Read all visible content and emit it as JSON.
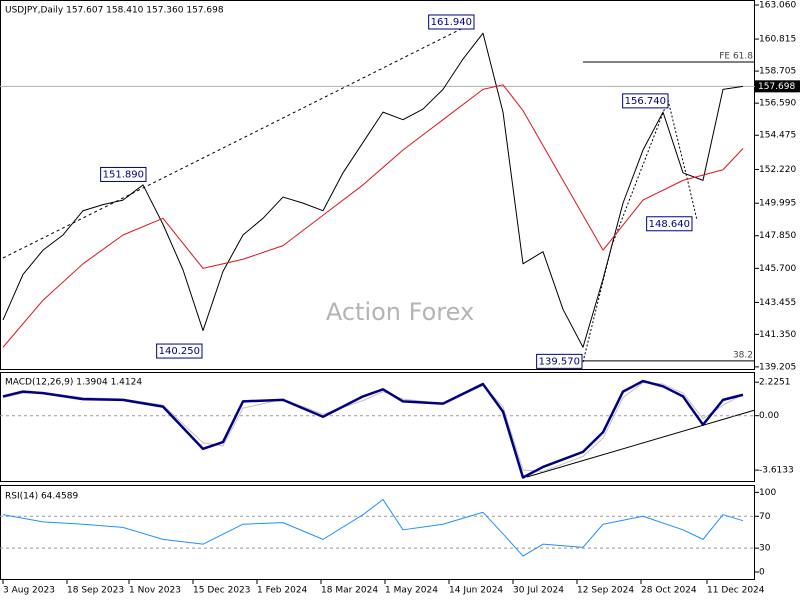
{
  "chart_data": [
    {
      "type": "line",
      "title": "USDJPY,Daily 157.607 158.410 157.360 157.698",
      "watermark": "Action Forex",
      "ylim": [
        139.0,
        163.39
      ],
      "yticks": [
        {
          "value": 163.06,
          "label": "163.060"
        },
        {
          "value": 160.815,
          "label": "160.815"
        },
        {
          "value": 158.705,
          "label": "158.705"
        },
        {
          "value": 156.59,
          "label": "156.590"
        },
        {
          "value": 154.475,
          "label": "154.475"
        },
        {
          "value": 152.22,
          "label": "152.220"
        },
        {
          "value": 149.995,
          "label": "149.995"
        },
        {
          "value": 147.85,
          "label": "147.850"
        },
        {
          "value": 145.7,
          "label": "145.700"
        },
        {
          "value": 143.455,
          "label": "143.455"
        },
        {
          "value": 141.35,
          "label": "141.350"
        },
        {
          "value": 139.205,
          "label": "139.205"
        }
      ],
      "current": {
        "value": 157.698,
        "label": "157.698"
      },
      "series": [
        {
          "color": "#000000",
          "linewidth": 1,
          "x": [
            0,
            10,
            20,
            30,
            40,
            50,
            60,
            70,
            80,
            90,
            100,
            110,
            120,
            130,
            140,
            150,
            160,
            170,
            180,
            190,
            200,
            210,
            220,
            230,
            240,
            250,
            260,
            270,
            280,
            290,
            300,
            310,
            320,
            330,
            340,
            350,
            360,
            370
          ],
          "values": [
            142.3,
            145.3,
            146.9,
            147.9,
            149.5,
            149.9,
            150.2,
            151.2,
            148.6,
            145.6,
            141.6,
            145.5,
            147.9,
            149.0,
            150.4,
            150.0,
            149.5,
            152.0,
            154.0,
            156.0,
            155.5,
            156.2,
            157.5,
            159.5,
            161.2,
            156.0,
            146.0,
            146.8,
            143.0,
            140.5,
            145.0,
            150.0,
            153.5,
            156.0,
            152.0,
            151.5,
            157.5,
            157.698
          ]
        },
        {
          "color": "#e0141e",
          "linewidth": 1,
          "x": [
            0,
            20,
            40,
            60,
            80,
            100,
            120,
            140,
            160,
            180,
            200,
            220,
            240,
            250,
            260,
            280,
            300,
            320,
            340,
            360,
            370
          ],
          "values": [
            140.5,
            143.6,
            146.0,
            147.9,
            149.0,
            145.7,
            146.3,
            147.2,
            149.2,
            151.2,
            153.5,
            155.5,
            157.5,
            157.8,
            156.1,
            151.5,
            146.9,
            150.2,
            151.5,
            152.2,
            153.6
          ]
        }
      ],
      "annotations": [
        {
          "x": 236,
          "value": 161.94,
          "label": "161.940"
        },
        {
          "x": 72,
          "value": 151.89,
          "label": "151.890"
        },
        {
          "x": 100,
          "value": 140.25,
          "label": "140.250"
        },
        {
          "x": 290,
          "value": 139.57,
          "label": "139.570"
        },
        {
          "x": 333,
          "value": 156.74,
          "label": "156.740"
        },
        {
          "x": 345,
          "value": 148.64,
          "label": "148.640"
        }
      ],
      "levels": [
        {
          "from": 290,
          "value": 159.3,
          "label": "FE 61.8"
        },
        {
          "from": 290,
          "value": 139.6,
          "label": "38.2"
        }
      ]
    },
    {
      "type": "line",
      "title": "MACD(12,26,9) 1.3904 1.4124",
      "ylim": [
        -4.4,
        2.9
      ],
      "yticks": [
        2.2251,
        {
          "value": 0,
          "label": "0.00"
        },
        -3.6133
      ],
      "dashed": [
        1
      ],
      "series": [
        {
          "color": "#c0c0c0",
          "linewidth": 1,
          "x": [
            0,
            10,
            20,
            40,
            60,
            80,
            100,
            110,
            120,
            140,
            160,
            180,
            190,
            200,
            220,
            240,
            250,
            260,
            270,
            290,
            300,
            310,
            320,
            330,
            340,
            350,
            360,
            370
          ],
          "values": [
            1.2,
            1.5,
            1.55,
            1.2,
            1.1,
            0.7,
            -1.8,
            -2.0,
            0.5,
            1.1,
            0.1,
            1.0,
            1.6,
            1.1,
            0.8,
            2.0,
            0.6,
            -3.6,
            -3.7,
            -2.7,
            -1.5,
            1.2,
            2.2,
            2.1,
            1.5,
            -0.2,
            0.7,
            1.41
          ]
        },
        {
          "color": "#000080",
          "linewidth": 2.5,
          "x": [
            0,
            10,
            20,
            40,
            60,
            80,
            100,
            110,
            120,
            140,
            160,
            180,
            190,
            200,
            220,
            240,
            250,
            260,
            270,
            290,
            300,
            310,
            320,
            330,
            340,
            350,
            360,
            370
          ],
          "values": [
            1.28,
            1.6,
            1.5,
            1.1,
            1.05,
            0.6,
            -2.2,
            -1.75,
            0.95,
            1.05,
            -0.07,
            1.28,
            1.75,
            0.95,
            0.8,
            2.1,
            0.27,
            -4.1,
            -3.4,
            -2.4,
            -1.1,
            1.6,
            2.3,
            1.95,
            1.28,
            -0.6,
            1.05,
            1.39
          ]
        }
      ]
    },
    {
      "type": "line",
      "title": "RSI(14) 64.4589",
      "ylim": [
        -10,
        108
      ],
      "yticks": [
        100,
        70,
        30,
        0
      ],
      "dashed": [
        1,
        2
      ],
      "xlim": [
        -1.5,
        376
      ],
      "xticks": [
        {
          "value": 0,
          "label": "3 Aug 2023"
        },
        {
          "value": 32,
          "label": "18 Sep 2023"
        },
        {
          "value": 63,
          "label": "1 Nov 2023"
        },
        {
          "value": 95,
          "label": "15 Dec 2023"
        },
        {
          "value": 127,
          "label": "1 Feb 2024"
        },
        {
          "value": 159,
          "label": "18 Mar 2024"
        },
        {
          "value": 191,
          "label": "1 May 2024"
        },
        {
          "value": 223,
          "label": "14 Jun 2024"
        },
        {
          "value": 255,
          "label": "30 Jul 2024"
        },
        {
          "value": 287,
          "label": "12 Sep 2024"
        },
        {
          "value": 319,
          "label": "28 Oct 2024"
        },
        {
          "value": 352,
          "label": "11 Dec 2024"
        }
      ],
      "series": [
        {
          "color": "#1e90ff",
          "linewidth": 1,
          "x": [
            0,
            20,
            40,
            60,
            80,
            100,
            120,
            140,
            160,
            180,
            190,
            200,
            220,
            240,
            250,
            260,
            270,
            290,
            300,
            320,
            340,
            350,
            360,
            370
          ],
          "values": [
            72,
            63,
            60,
            56,
            41,
            35,
            60,
            62,
            41,
            72,
            91,
            53,
            60,
            75,
            48,
            20,
            35,
            31,
            60,
            70,
            53,
            41,
            72,
            64.4589
          ]
        }
      ]
    }
  ]
}
